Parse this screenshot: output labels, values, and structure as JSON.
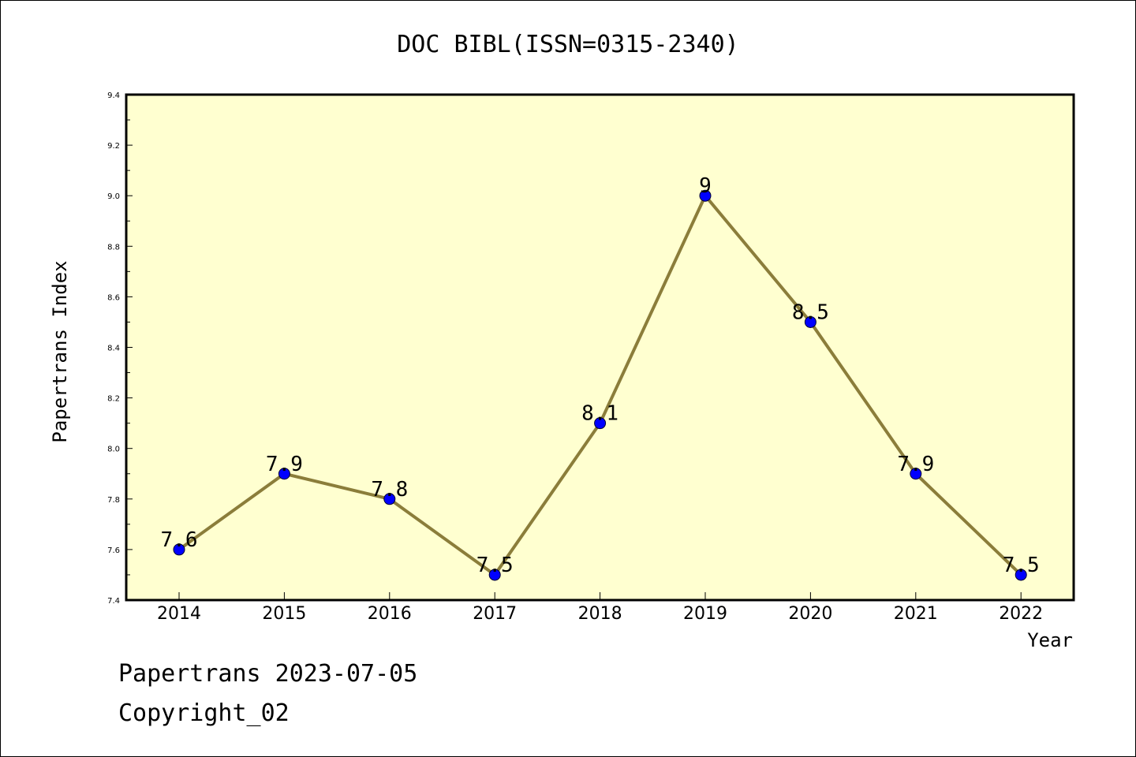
{
  "chart_data": {
    "type": "line",
    "title": "DOC BIBL(ISSN=0315-2340)",
    "xlabel": "Year",
    "ylabel": "Papertrans Index",
    "categories": [
      "2014",
      "2015",
      "2016",
      "2017",
      "2018",
      "2019",
      "2020",
      "2021",
      "2022"
    ],
    "series": [
      {
        "values": [
          7.6,
          7.9,
          7.8,
          7.5,
          8.1,
          9.0,
          8.5,
          7.9,
          7.5
        ]
      }
    ],
    "data_labels": [
      "7.6",
      "7.9",
      "7.8",
      "7.5",
      "8.1",
      "9",
      "8.5",
      "7.9",
      "7.5"
    ],
    "ylim": [
      7.4,
      9.4
    ],
    "yticks": [
      "7.4",
      "7.6",
      "7.8",
      "8.0",
      "8.2",
      "8.4",
      "8.6",
      "8.8",
      "9.0",
      "9.2",
      "9.4"
    ],
    "grid": false,
    "colors": {
      "plot_background": "#ffffd0",
      "line": "#8b7d3a",
      "marker": "#0000ff"
    }
  },
  "footer": {
    "line1": "Papertrans 2023-07-05",
    "line2": "Copyright_02"
  }
}
